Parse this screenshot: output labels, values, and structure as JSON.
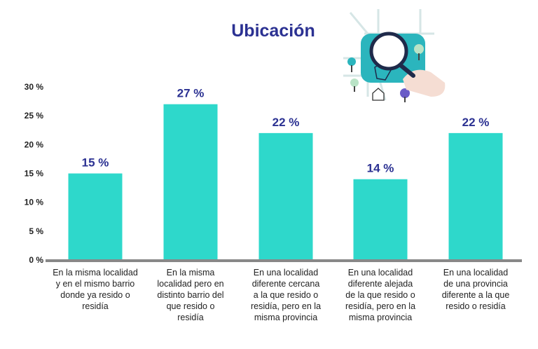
{
  "chart_data": {
    "type": "bar",
    "title": "Ubicación",
    "categories": [
      "En la misma localidad\ny en el mismo barrio\ndonde ya resido o\nresidía",
      "En la misma\nlocalidad pero en\ndistinto barrio del\nque resido o\nresidía",
      "En una localidad\ndiferente cercana\na la que resido o\nresidía, pero en la\nmisma provincia",
      "En una localidad\ndiferente alejada\nde la que resido o\nresidía, pero en la\nmisma provincia",
      "En una localidad\nde una provincia\ndiferente a la que\nresido o residía"
    ],
    "values": [
      15,
      27,
      22,
      14,
      22
    ],
    "data_labels": [
      "15 %",
      "27 %",
      "22 %",
      "14 %",
      "22 %"
    ],
    "ylim": [
      0,
      30
    ],
    "yticks": [
      0,
      5,
      10,
      15,
      20,
      25,
      30
    ],
    "ytick_labels": [
      "0 %",
      "5 %",
      "10 %",
      "15 %",
      "20 %",
      "25 %",
      "30 %"
    ],
    "xlabel": "",
    "ylabel": "",
    "grid": false,
    "colors": {
      "bar": "#2ed8cb",
      "title": "#2b3192",
      "axis": "#888888"
    }
  }
}
